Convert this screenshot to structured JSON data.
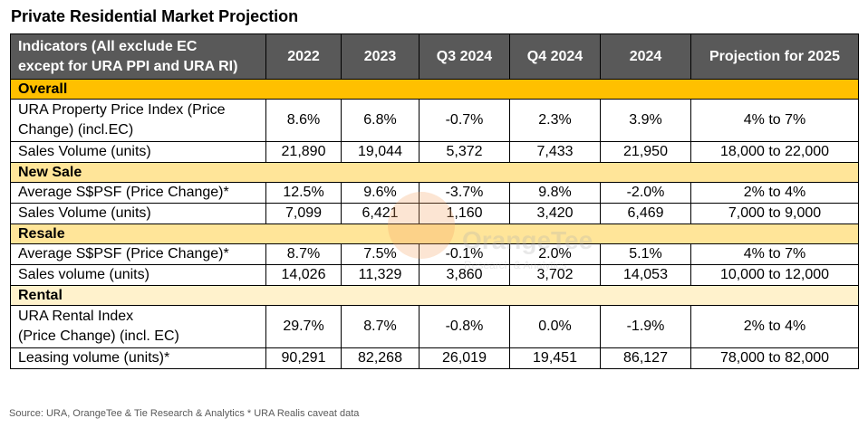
{
  "title": "Private Residential Market Projection",
  "header": {
    "indicator_line1": "Indicators (All exclude EC",
    "indicator_line2": "except for URA PPI and URA RI)",
    "columns": [
      "2022",
      "2023",
      "Q3 2024",
      "Q4 2024",
      "2024",
      "Projection for 2025"
    ]
  },
  "sections": {
    "overall": {
      "label": "Overall",
      "ppi": {
        "label_line1": "URA Property Price Index (Price",
        "label_line2": "Change) (incl.EC)",
        "values": [
          "8.6%",
          "6.8%",
          "-0.7%",
          "2.3%",
          "3.9%",
          "4% to 7%"
        ]
      },
      "sales": {
        "label": "Sales Volume (units)",
        "values": [
          "21,890",
          "19,044",
          "5,372",
          "7,433",
          "21,950",
          "18,000 to 22,000"
        ]
      }
    },
    "new_sale": {
      "label": "New Sale",
      "psf": {
        "label": "Average S$PSF (Price Change)*",
        "values": [
          "12.5%",
          "9.6%",
          "-3.7%",
          "9.8%",
          "-2.0%",
          "2% to 4%"
        ]
      },
      "sales": {
        "label": "Sales Volume (units)",
        "values": [
          "7,099",
          "6,421",
          "1,160",
          "3,420",
          "6,469",
          "7,000 to 9,000"
        ]
      }
    },
    "resale": {
      "label": "Resale",
      "psf": {
        "label": "Average S$PSF (Price Change)*",
        "values": [
          "8.7%",
          "7.5%",
          "-0.1%",
          "2.0%",
          "5.1%",
          "4% to 7%"
        ]
      },
      "sales": {
        "label": "Sales volume (units)",
        "values": [
          "14,026",
          "11,329",
          "3,860",
          "3,702",
          "14,053",
          "10,000 to 12,000"
        ]
      }
    },
    "rental": {
      "label": "Rental",
      "ri": {
        "label_line1": "URA Rental Index",
        "label_line2": "(Price Change) (incl. EC)",
        "values": [
          "29.7%",
          "8.7%",
          "-0.8%",
          "0.0%",
          "-1.9%",
          "2% to 4%"
        ]
      },
      "leasing": {
        "label": "Leasing volume (units)*",
        "values": [
          "90,291",
          "82,268",
          "26,019",
          "19,451",
          "86,127",
          "78,000 to 82,000"
        ]
      }
    }
  },
  "source": "Source: URA, OrangeTee & Tie Research & Analytics    * URA Realis caveat data",
  "watermark": {
    "brand": "OrangeTee",
    "sub": "Research & Analytics"
  },
  "colors": {
    "header_bg": "#595959",
    "overall_bg": "#ffc000",
    "new_sale_bg": "#ffe599",
    "resale_bg": "#ffe599",
    "rental_bg": "#fff2cc"
  }
}
